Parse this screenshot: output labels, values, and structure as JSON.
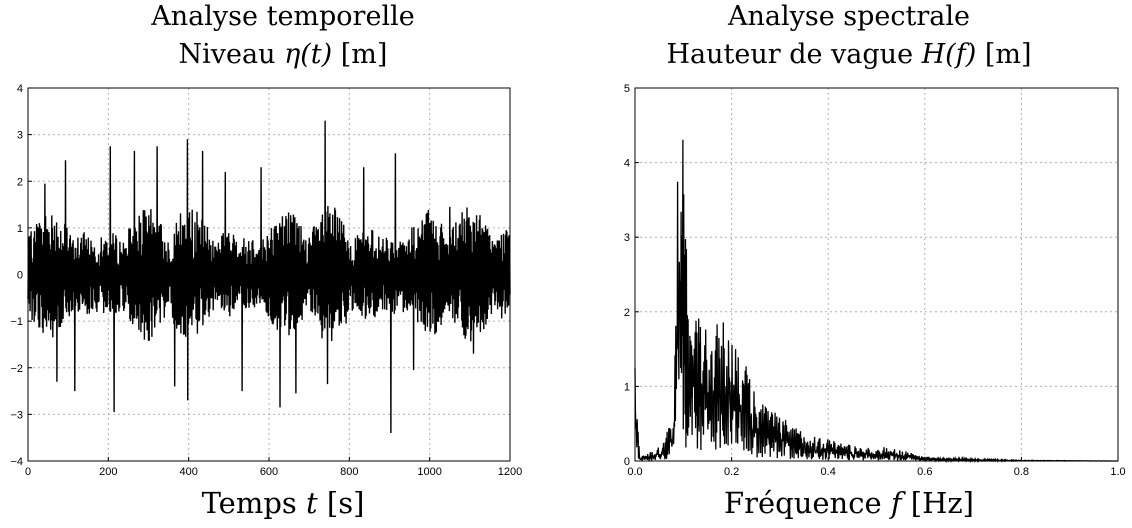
{
  "chart_data": [
    {
      "type": "line",
      "title_line1": "Analyse temporelle",
      "title_line2_prefix": "Niveau ",
      "title_line2_var": "η(t)",
      "title_line2_suffix": " [m]",
      "xlabel_prefix": "Temps ",
      "xlabel_var": "t",
      "xlabel_suffix": " [s]",
      "xlim": [
        0,
        1200
      ],
      "ylim": [
        -4,
        4
      ],
      "xticks": [
        "0",
        "200",
        "400",
        "600",
        "800",
        "1000",
        "1200"
      ],
      "yticks": [
        "4",
        "3",
        "2",
        "1",
        "0",
        "−1",
        "−2",
        "−3",
        "−4"
      ],
      "grid": true,
      "series": [
        {
          "color": "#000000",
          "peaks": [
            {
              "x": 42,
              "y": 1.95
            },
            {
              "x": 72,
              "y": -2.3
            },
            {
              "x": 93,
              "y": 2.45
            },
            {
              "x": 117,
              "y": -2.5
            },
            {
              "x": 205,
              "y": 2.75
            },
            {
              "x": 215,
              "y": -2.95
            },
            {
              "x": 265,
              "y": 2.65
            },
            {
              "x": 322,
              "y": 2.75
            },
            {
              "x": 365,
              "y": -2.4
            },
            {
              "x": 397,
              "y": 2.9
            },
            {
              "x": 398,
              "y": -2.7
            },
            {
              "x": 435,
              "y": 2.65
            },
            {
              "x": 492,
              "y": 2.2
            },
            {
              "x": 533,
              "y": -2.5
            },
            {
              "x": 580,
              "y": 2.3
            },
            {
              "x": 627,
              "y": -2.85
            },
            {
              "x": 667,
              "y": -2.55
            },
            {
              "x": 740,
              "y": 3.3
            },
            {
              "x": 745,
              "y": -2.35
            },
            {
              "x": 835,
              "y": 2.3
            },
            {
              "x": 903,
              "y": -3.4
            },
            {
              "x": 915,
              "y": 2.6
            },
            {
              "x": 960,
              "y": -2.05
            },
            {
              "x": 1050,
              "y": 1.45
            },
            {
              "x": 1110,
              "y": -1.7
            }
          ]
        }
      ]
    },
    {
      "type": "line",
      "title_line1": "Analyse spectrale",
      "title_line2_prefix": "Hauteur de vague ",
      "title_line2_var": "H(f)",
      "title_line2_suffix": " [m]",
      "xlabel_prefix": "Fréquence ",
      "xlabel_var": "f",
      "xlabel_suffix": " [Hz]",
      "xlim": [
        0,
        1.0
      ],
      "ylim": [
        0,
        5
      ],
      "xticks": [
        "0.0",
        "0.2",
        "0.4",
        "0.6",
        "0.8",
        "1.0"
      ],
      "yticks": [
        "5",
        "4",
        "3",
        "2",
        "1",
        "0"
      ],
      "grid": true,
      "series": [
        {
          "color": "#000000",
          "envelope": [
            {
              "x": 0.0,
              "y": 1.25
            },
            {
              "x": 0.01,
              "y": 0.05
            },
            {
              "x": 0.05,
              "y": 0.2
            },
            {
              "x": 0.08,
              "y": 0.6
            },
            {
              "x": 0.09,
              "y": 4.5
            },
            {
              "x": 0.1,
              "y": 4.75
            },
            {
              "x": 0.105,
              "y": 3.2
            },
            {
              "x": 0.12,
              "y": 2.2
            },
            {
              "x": 0.15,
              "y": 1.9
            },
            {
              "x": 0.2,
              "y": 1.85
            },
            {
              "x": 0.25,
              "y": 0.9
            },
            {
              "x": 0.3,
              "y": 0.6
            },
            {
              "x": 0.35,
              "y": 0.4
            },
            {
              "x": 0.4,
              "y": 0.3
            },
            {
              "x": 0.5,
              "y": 0.15
            },
            {
              "x": 0.52,
              "y": 0.2
            },
            {
              "x": 0.6,
              "y": 0.06
            },
            {
              "x": 0.7,
              "y": 0.03
            },
            {
              "x": 0.8,
              "y": 0.01
            },
            {
              "x": 1.0,
              "y": 0.0
            }
          ]
        }
      ]
    }
  ]
}
